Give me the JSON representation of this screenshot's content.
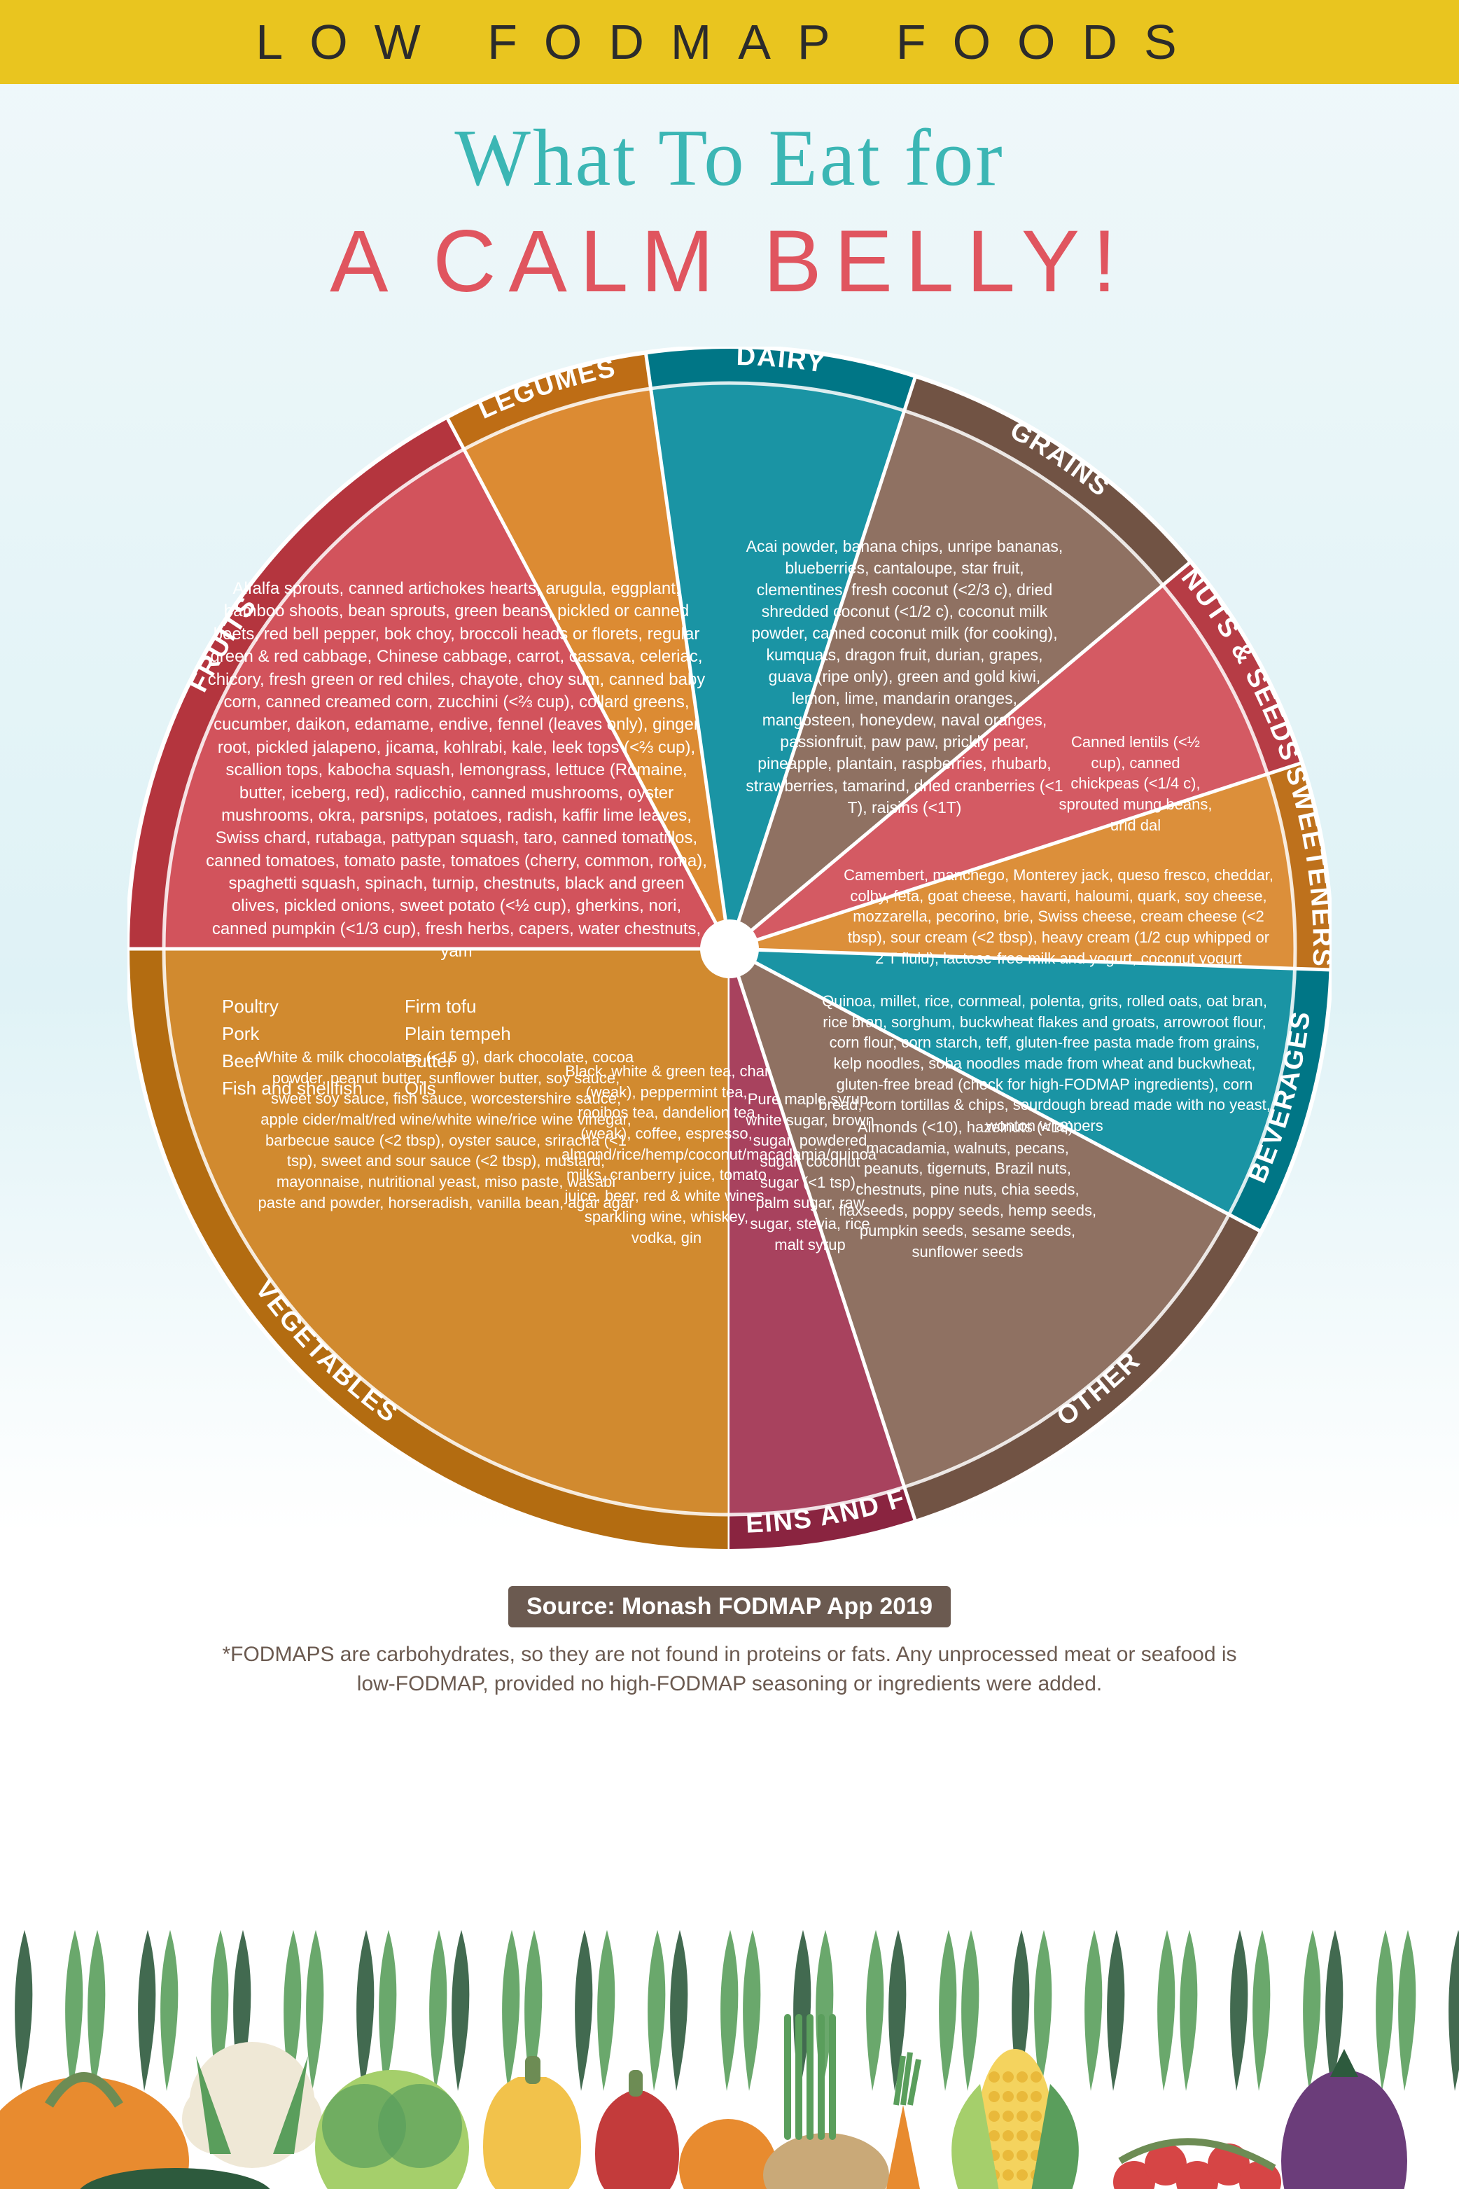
{
  "header": {
    "banner_bg": "#e9c51f",
    "banner_text": "LOW FODMAP FOODS",
    "banner_text_color": "#2b2b2b",
    "subtitle_text": "What To Eat for",
    "subtitle_color": "#3bb6b4",
    "maintitle_text": "A CALM BELLY!",
    "maintitle_color": "#e0555f"
  },
  "wheel": {
    "outer_ring_color": "#e8e8e8",
    "center_hub_color": "#ffffff",
    "slices": [
      {
        "id": "vegetables",
        "label": "VEGETABLES",
        "color": "#d18a2f",
        "start": 180,
        "end": 270,
        "items": "Alfalfa sprouts, canned artichokes hearts, arugula, eggplant, bamboo shoots, bean sprouts, green beans, pickled or canned beets, red bell pepper, bok choy, broccoli heads or florets, regular green & red cabbage, Chinese cabbage, carrot, cassava, celeriac, chicory, fresh green or red chiles, chayote, choy sum, canned baby corn, canned creamed corn, zucchini (<⅔ cup), collard greens, cucumber, daikon, edamame, endive, fennel (leaves only), ginger root, pickled jalapeno, jicama, kohlrabi, kale, leek tops (<⅔ cup), scallion tops, kabocha squash, lemongrass, lettuce (Romaine, butter, iceberg, red), radicchio, canned mushrooms, oyster mushrooms, okra, parsnips, potatoes, radish, kaffir lime leaves, Swiss chard, rutabaga, pattypan squash, taro, canned tomatillos, canned tomatoes, tomato paste, tomatoes (cherry, common, roma), spaghetti squash, spinach, turnip, chestnuts, black and green olives, pickled onions, sweet potato (<½ cup), gherkins, nori, canned pumpkin (<1/3 cup), fresh herbs, capers, water chestnuts, yam"
      },
      {
        "id": "fruits",
        "label": "FRUITS",
        "color": "#d2535c",
        "start": 270,
        "end": 332,
        "items": "Acai powder, banana chips, unripe bananas, blueberries, cantaloupe, star fruit, clementines, fresh coconut (<2/3 c), dried shredded coconut (<1/2 c), coconut milk powder, canned coconut milk (for cooking), kumquats, dragon fruit, durian, grapes, guava (ripe only), green and gold kiwi, lemon, lime, mandarin oranges, mangosteen, honeydew, naval oranges, passionfruit, paw paw, prickly pear, pineapple, plantain, raspberries, rhubarb, strawberries, tamarind, dried cranberries (<1 T), raisins (<1T)"
      },
      {
        "id": "legumes",
        "label": "LEGUMES",
        "color": "#dc8b33",
        "start": 332,
        "end": 352,
        "items": "Canned lentils (<½ cup), canned chickpeas (<1/4 c), sprouted mung beans, urid dal"
      },
      {
        "id": "dairy",
        "label": "DAIRY",
        "color": "#1a94a4",
        "start": 352,
        "end": 18,
        "items": "Camembert, manchego, Monterey jack, queso fresco, cheddar, colby, feta, goat cheese, havarti, haloumi, quark, soy cheese, mozzarella, pecorino, brie, Swiss cheese, cream cheese (<2 tbsp), sour cream (<2 tbsp), heavy cream (1/2 cup whipped or 2 T fluid), lactose-free milk and yogurt, coconut yogurt"
      },
      {
        "id": "grains",
        "label": "GRAINS",
        "color": "#8f7162",
        "start": 18,
        "end": 50,
        "items": "Quinoa, millet, rice, cornmeal, polenta, grits, rolled oats, oat bran, rice bran, sorghum, buckwheat flakes and groats, arrowroot flour, corn flour, corn starch, teff, gluten-free pasta made from grains, kelp noodles, soba noodles made from wheat and buckwheat, gluten-free bread (check for high-FODMAP ingredients), corn bread, corn tortillas & chips, sourdough bread made with no yeast, wonton wrappers"
      },
      {
        "id": "nuts",
        "label": "NUTS & SEEDS",
        "color": "#d45a63",
        "start": 50,
        "end": 72,
        "items": "Almonds (<10), hazelnuts (<10), macadamia, walnuts, pecans, peanuts, tigernuts, Brazil nuts, chestnuts, pine nuts, chia seeds, flaxseeds, poppy seeds, hemp seeds, pumpkin seeds, sesame seeds, sunflower seeds"
      },
      {
        "id": "sweeteners",
        "label": "SWEETENERS",
        "color": "#dc8f3a",
        "start": 72,
        "end": 92,
        "items": "Pure maple syrup, white sugar, brown sugar, powdered sugar, coconut sugar (<1 tsp), palm sugar, raw sugar, stevia, rice malt syrup"
      },
      {
        "id": "beverages",
        "label": "BEVERAGES",
        "color": "#1a94a4",
        "start": 92,
        "end": 118,
        "items": "Black, white & green tea, chai (weak), peppermint tea, rooibos tea, dandelion tea (weak), coffee, espresso, almond/rice/hemp/coconut/macadamia/quinoa milks, cranberry juice, tomato juice, beer, red & white wines, sparkling wine, whiskey, vodka, gin"
      },
      {
        "id": "other",
        "label": "OTHER",
        "color": "#8f7162",
        "start": 118,
        "end": 162,
        "items": "White & milk chocolates (<15 g), dark chocolate, cocoa powder, peanut butter, sunflower butter, soy sauce, sweet soy sauce, fish sauce, worcestershire sauce, apple cider/malt/red wine/white wine/rice wine vinegar, barbecue sauce (<2 tbsp), oyster sauce, sriracha (<1 tsp), sweet and sour sauce (<2 tbsp), mustard, mayonnaise, nutritional yeast, miso paste, wasabi paste and powder, horseradish, vanilla bean, agar agar"
      },
      {
        "id": "proteins",
        "label": "PROTEINS AND FATS*",
        "color": "#a8425e",
        "start": 162,
        "end": 180,
        "items_col1": [
          "Poultry",
          "Pork",
          "Beef",
          "Fish and shellfish"
        ],
        "items_col2": [
          "Firm tofu",
          "Plain tempeh",
          "Butter",
          "Oils"
        ]
      }
    ]
  },
  "footer": {
    "source_bg": "#6b5a50",
    "source_text": "Source: Monash FODMAP App 2019",
    "footnote_color": "#6b5a50",
    "footnote_text": "*FODMAPS are carbohydrates, so they are not found in proteins or fats. Any unprocessed meat or seafood is low-FODMAP, provided no high-FODMAP seasoning or ingredients were added."
  },
  "veg_colors": {
    "dark_green": "#2d5a3d",
    "mid_green": "#5a9e5c",
    "light_green": "#a5cf6b",
    "orange": "#e88b2f",
    "yellow": "#f2c24b",
    "red": "#c33b3b",
    "purple": "#6b3d7a",
    "tan": "#c9a978",
    "cream": "#efe8d6",
    "tomato": "#d64545",
    "corn": "#f4d35e",
    "stem": "#6d8c54"
  }
}
